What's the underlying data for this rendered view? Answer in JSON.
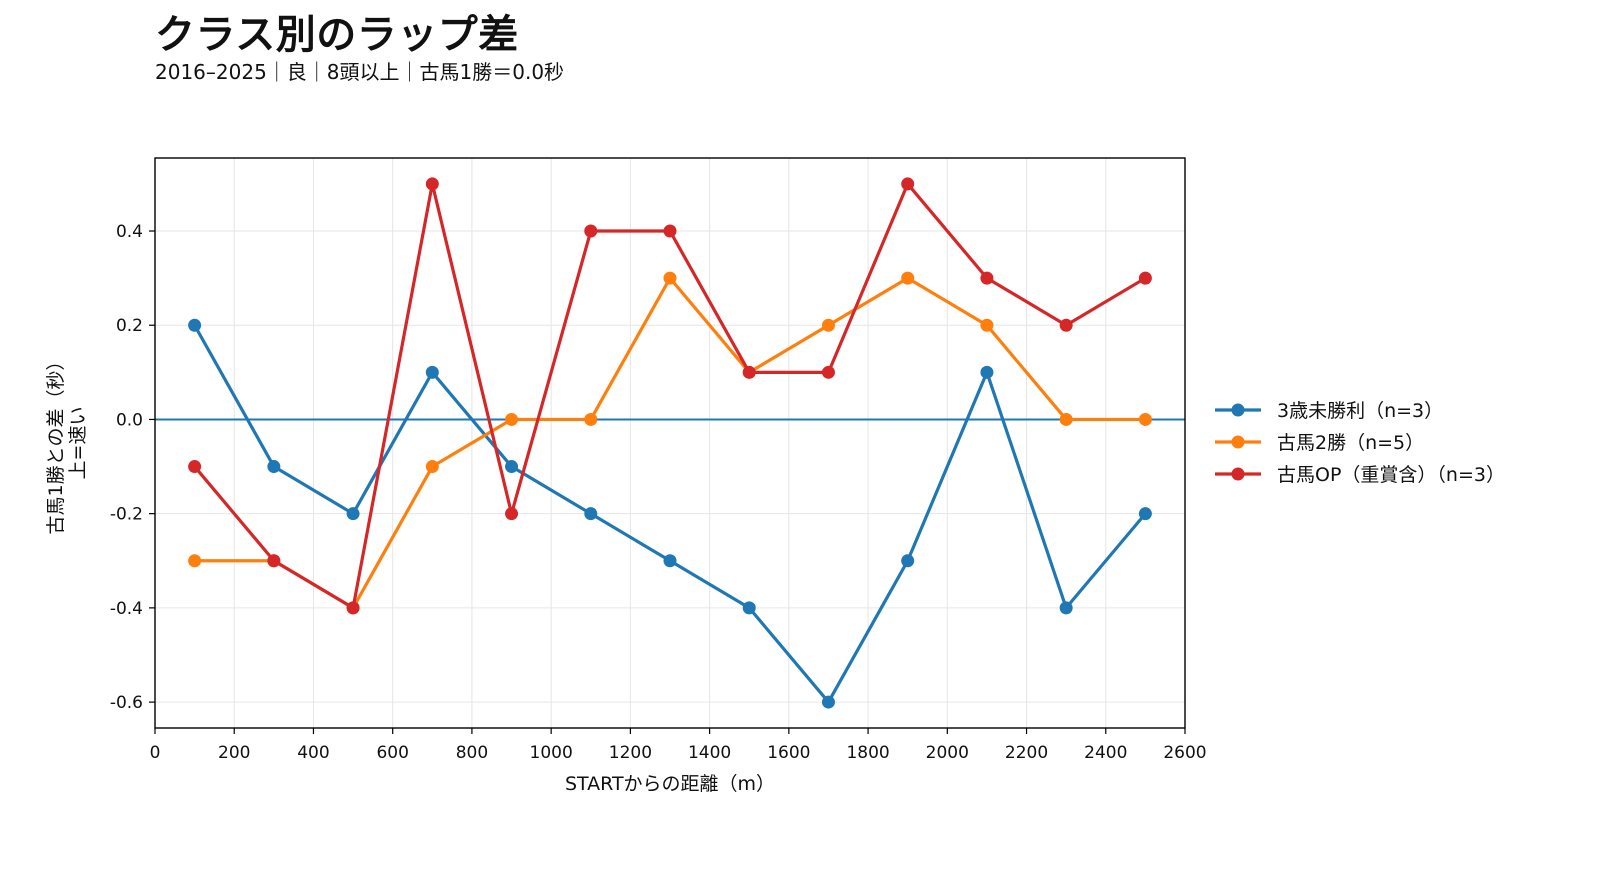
{
  "title": "クラス別のラップ差",
  "subtitle": "2016–2025｜良｜8頭以上｜古馬1勝＝0.0秒",
  "chart_data": {
    "type": "line",
    "title": "クラス別のラップ差",
    "subtitle": "2016–2025｜良｜8頭以上｜古馬1勝＝0.0秒",
    "xlabel": "STARTからの距離（m）",
    "ylabel_lines": [
      "古馬1勝との差（秒）",
      "上=速い"
    ],
    "xlim": [
      0,
      2600
    ],
    "ylim": [
      -0.655,
      0.555
    ],
    "xticks": [
      0,
      200,
      400,
      600,
      800,
      1000,
      1200,
      1400,
      1600,
      1800,
      2000,
      2200,
      2400,
      2600
    ],
    "yticks": [
      -0.6,
      -0.4,
      -0.2,
      0.0,
      0.2,
      0.4
    ],
    "ytick_labels": [
      "-0.6",
      "-0.4",
      "-0.2",
      "0.0",
      "0.2",
      "0.4"
    ],
    "grid": true,
    "legend_position": "right-outside",
    "reference_line": {
      "y": 0.0,
      "color": "#1f77b4"
    },
    "x": [
      100,
      300,
      500,
      700,
      900,
      1100,
      1300,
      1500,
      1700,
      1900,
      2100,
      2300,
      2500
    ],
    "series": [
      {
        "name": "3歳未勝利（n=3）",
        "color": "#1f77b4",
        "values": [
          0.2,
          -0.1,
          -0.2,
          0.1,
          -0.1,
          -0.2,
          -0.3,
          -0.4,
          -0.6,
          -0.3,
          0.1,
          -0.4,
          -0.2
        ]
      },
      {
        "name": "古馬2勝（n=5）",
        "color": "#ff7f0e",
        "values": [
          -0.3,
          -0.3,
          -0.4,
          -0.1,
          0.0,
          0.0,
          0.3,
          0.1,
          0.2,
          0.3,
          0.2,
          0.0,
          0.0
        ]
      },
      {
        "name": "古馬OP（重賞含）（n=3）",
        "color": "#d62728",
        "values": [
          -0.1,
          -0.3,
          -0.4,
          0.5,
          -0.2,
          0.4,
          0.4,
          0.1,
          0.1,
          0.5,
          0.3,
          0.2,
          0.3
        ]
      }
    ]
  }
}
